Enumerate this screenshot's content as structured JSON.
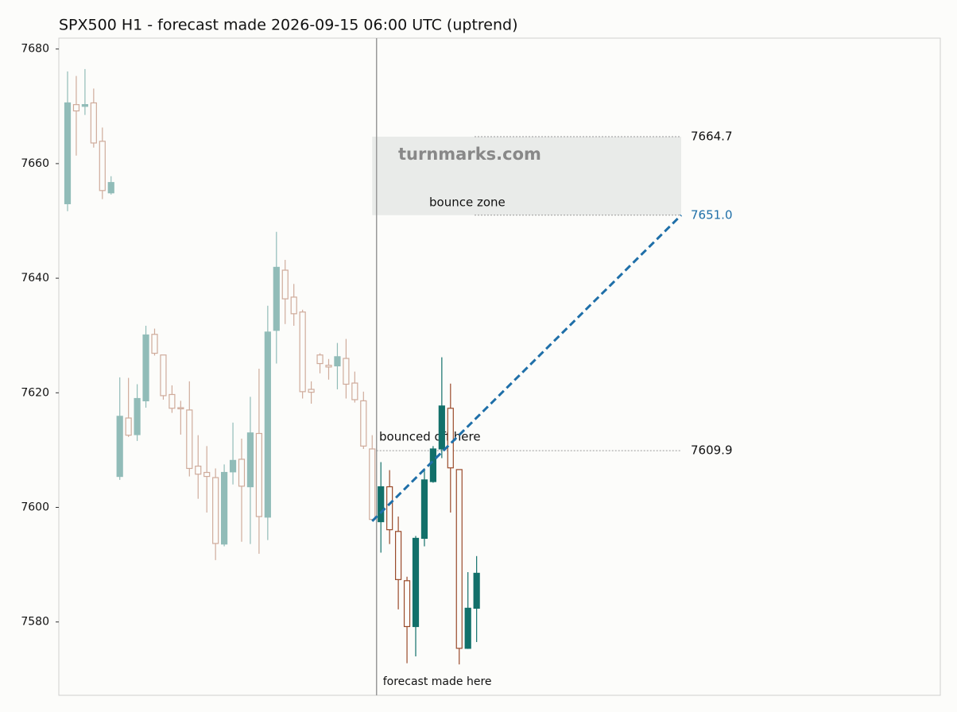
{
  "chart_data": {
    "type": "candlestick",
    "title": "SPX500 H1 - forecast made 2026-09-15 06:00 UTC (uptrend)",
    "up_color": "#12706a",
    "down_color": "#9a4a2a",
    "ylim": [
      7567.2,
      7681.9
    ],
    "yticks": [
      7580,
      7600,
      7620,
      7640,
      7660,
      7680
    ],
    "history": [
      [
        7653.0,
        7676.1,
        7651.7,
        7670.6
      ],
      [
        7670.3,
        7675.3,
        7661.4,
        7669.2
      ],
      [
        7670.0,
        7676.5,
        7668.5,
        7670.3
      ],
      [
        7670.6,
        7673.1,
        7662.8,
        7663.6
      ],
      [
        7663.9,
        7666.3,
        7653.8,
        7655.3
      ],
      [
        7654.9,
        7657.8,
        7654.6,
        7656.7
      ],
      [
        7605.4,
        7622.7,
        7604.8,
        7615.9
      ],
      [
        7615.6,
        7622.6,
        7612.3,
        7612.6
      ],
      [
        7612.7,
        7621.5,
        7611.6,
        7619.0
      ],
      [
        7618.6,
        7631.7,
        7617.4,
        7630.1
      ],
      [
        7630.2,
        7631.2,
        7626.5,
        7626.9
      ],
      [
        7626.6,
        7626.6,
        7618.8,
        7619.5
      ],
      [
        7619.7,
        7621.3,
        7616.5,
        7617.3
      ],
      [
        7617.4,
        7618.6,
        7612.7,
        7617.2
      ],
      [
        7617.0,
        7622.0,
        7605.4,
        7606.8
      ],
      [
        7607.2,
        7612.6,
        7601.5,
        7605.8
      ],
      [
        7606.1,
        7610.7,
        7599.1,
        7605.4
      ],
      [
        7605.2,
        7606.8,
        7590.8,
        7593.7
      ],
      [
        7593.6,
        7607.5,
        7593.2,
        7606.1
      ],
      [
        7606.2,
        7614.8,
        7604.0,
        7608.2
      ],
      [
        7608.4,
        7612.0,
        7594.0,
        7603.7
      ],
      [
        7603.6,
        7619.3,
        7593.6,
        7613.0
      ],
      [
        7612.9,
        7624.2,
        7591.9,
        7598.4
      ],
      [
        7598.3,
        7635.2,
        7594.3,
        7630.6
      ],
      [
        7630.9,
        7648.1,
        7625.1,
        7641.9
      ],
      [
        7641.4,
        7643.2,
        7632.0,
        7636.4
      ],
      [
        7636.7,
        7639.0,
        7631.7,
        7633.8
      ],
      [
        7634.1,
        7634.5,
        7619.0,
        7620.2
      ],
      [
        7620.6,
        7622.0,
        7618.1,
        7620.1
      ],
      [
        7626.6,
        7626.9,
        7623.4,
        7625.1
      ],
      [
        7624.8,
        7625.9,
        7622.3,
        7624.5
      ],
      [
        7624.7,
        7628.7,
        7620.6,
        7626.3
      ],
      [
        7626.0,
        7629.4,
        7619.0,
        7621.5
      ],
      [
        7621.7,
        7623.7,
        7618.3,
        7618.8
      ],
      [
        7618.6,
        7620.2,
        7610.2,
        7610.7
      ],
      [
        7610.2,
        7612.6,
        7597.8,
        7597.9
      ]
    ],
    "forecast": [
      [
        7597.5,
        7607.9,
        7592.1,
        7603.6
      ],
      [
        7603.6,
        7606.5,
        7593.6,
        7596.1
      ],
      [
        7595.8,
        7598.4,
        7582.2,
        7587.4
      ],
      [
        7587.2,
        7587.9,
        7572.8,
        7579.2
      ],
      [
        7579.2,
        7595.0,
        7574.0,
        7594.6
      ],
      [
        7594.6,
        7606.8,
        7593.2,
        7604.8
      ],
      [
        7604.5,
        7610.7,
        7604.3,
        7610.2
      ],
      [
        7610.2,
        7626.2,
        7608.6,
        7617.7
      ],
      [
        7617.3,
        7621.6,
        7599.1,
        7606.9
      ],
      [
        7606.6,
        7606.6,
        7572.6,
        7575.4
      ],
      [
        7575.4,
        7588.7,
        7575.3,
        7582.4
      ],
      [
        7582.4,
        7591.5,
        7576.5,
        7588.5
      ]
    ],
    "zone_top": 7664.7,
    "zone_color": "#e9ebe9",
    "zone_label": "bounce zone",
    "target": {
      "value": 7651,
      "label": "7651.0",
      "color": "#1f6fa8"
    },
    "trend_start": 7597.6,
    "bounce": {
      "value": 7609.9,
      "text": "bounced off here"
    },
    "watermark": "turnmarks.com",
    "forecast_label": "forecast made here"
  }
}
